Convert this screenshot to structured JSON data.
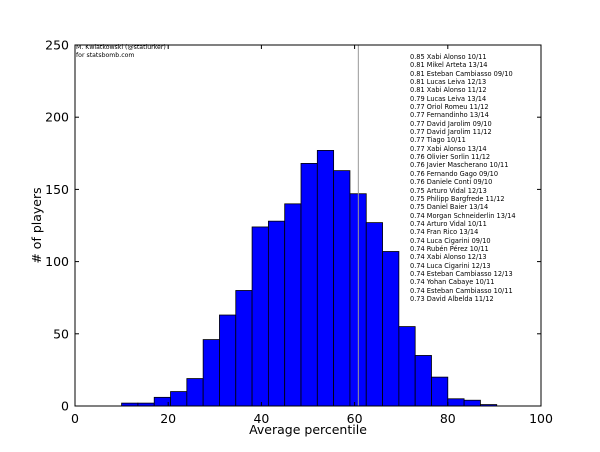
{
  "chart_data": {
    "type": "bar",
    "xlabel": "Average percentile",
    "ylabel": "# of players",
    "xlim": [
      0,
      100
    ],
    "ylim": [
      0,
      250
    ],
    "xticks": [
      0,
      20,
      40,
      60,
      80,
      100
    ],
    "yticks": [
      0,
      50,
      100,
      150,
      200,
      250
    ],
    "grid": false,
    "bar_color": "#0000ff",
    "bin_width": 3.5,
    "bins": [
      {
        "x0": 10.0,
        "value": 2
      },
      {
        "x0": 13.5,
        "value": 2
      },
      {
        "x0": 17.0,
        "value": 6
      },
      {
        "x0": 20.5,
        "value": 10
      },
      {
        "x0": 24.0,
        "value": 19
      },
      {
        "x0": 27.5,
        "value": 46
      },
      {
        "x0": 31.0,
        "value": 63
      },
      {
        "x0": 34.5,
        "value": 80
      },
      {
        "x0": 38.0,
        "value": 124
      },
      {
        "x0": 41.5,
        "value": 128
      },
      {
        "x0": 45.0,
        "value": 140
      },
      {
        "x0": 48.5,
        "value": 168
      },
      {
        "x0": 52.0,
        "value": 177
      },
      {
        "x0": 55.5,
        "value": 163
      },
      {
        "x0": 59.0,
        "value": 147
      },
      {
        "x0": 62.5,
        "value": 127
      },
      {
        "x0": 66.0,
        "value": 107
      },
      {
        "x0": 69.5,
        "value": 55
      },
      {
        "x0": 73.0,
        "value": 35
      },
      {
        "x0": 76.5,
        "value": 20
      },
      {
        "x0": 80.0,
        "value": 5
      },
      {
        "x0": 83.5,
        "value": 4
      },
      {
        "x0": 87.0,
        "value": 1
      }
    ],
    "reference_line_x": 60.8,
    "credit": [
      "M. Kwiatkowski (@statlurker)",
      "for statsbomb.com"
    ],
    "annotations": [
      "0.85 Xabi Alonso 10/11",
      "0.81 Mikel Arteta 13/14",
      "0.81 Esteban Cambiasso 09/10",
      "0.81 Lucas Leiva 12/13",
      "0.81 Xabi Alonso 11/12",
      "0.79 Lucas Leiva 13/14",
      "0.77 Oriol Romeu 11/12",
      "0.77 Fernandinho 13/14",
      "0.77 David Jarolim 09/10",
      "0.77 David Jarolim 11/12",
      "0.77 Tiago 10/11",
      "0.77 Xabi Alonso 13/14",
      "0.76 Olivier Sorlin 11/12",
      "0.76 Javier Mascherano 10/11",
      "0.76 Fernando Gago 09/10",
      "0.76 Daniele Conti 09/10",
      "0.75 Arturo Vidal 12/13",
      "0.75 Philipp Bargfrede 11/12",
      "0.75 Daniel Baier 13/14",
      "0.74 Morgan Schneiderlin 13/14",
      "0.74 Arturo Vidal 10/11",
      "0.74 Fran Rico 13/14",
      "0.74 Luca Cigarini 09/10",
      "0.74 Rubén Pérez 10/11",
      "0.74 Xabi Alonso 12/13",
      "0.74 Luca Cigarini 12/13",
      "0.74 Esteban Cambiasso 12/13",
      "0.74 Yohan Cabaye 10/11",
      "0.74 Esteban Cambiasso 10/11",
      "0.73 David Albelda 11/12"
    ]
  }
}
